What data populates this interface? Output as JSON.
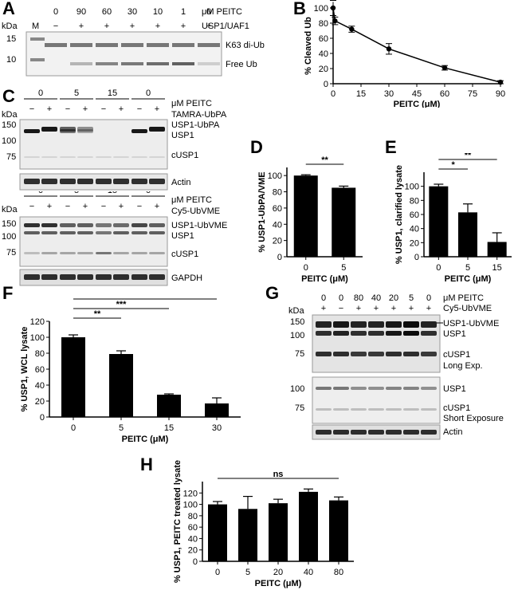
{
  "panels": {
    "A": {
      "letter": "A",
      "kda": "kDa",
      "marker_label": "M",
      "conc": [
        "0",
        "90",
        "60",
        "30",
        "10",
        "1",
        "0"
      ],
      "treat": [
        "−",
        "+",
        "+",
        "+",
        "+",
        "+",
        "+"
      ],
      "conc_unit": "μM PEITC",
      "enzyme": "USP1/UAF1",
      "mw": [
        "15",
        "10"
      ],
      "band_labels": [
        "K63 di-Ub",
        "Free Ub"
      ]
    },
    "C": {
      "letter": "C",
      "top": {
        "conc": [
          "0",
          "5",
          "15",
          "0"
        ],
        "conc_unit": "μM PEITC",
        "kda": "kDa",
        "treat": [
          "−",
          "+",
          "−",
          "+",
          "−",
          "+",
          "−",
          "+"
        ],
        "probe": "TAMRA-UbPA",
        "mw": [
          "150",
          "100",
          "75"
        ],
        "band_labels": [
          "USP1-UbPA",
          "USP1",
          "cUSP1"
        ],
        "loading": "Actin"
      },
      "bottom": {
        "kda": "kDa",
        "conc": [
          "0",
          "5",
          "15",
          "0"
        ],
        "conc_unit": "μM PEITC",
        "treat": [
          "−",
          "+",
          "−",
          "+",
          "−",
          "+",
          "−",
          "+"
        ],
        "probe": "Cy5-UbVME",
        "mw": [
          "150",
          "100",
          "75"
        ],
        "band_labels": [
          "USP1-UbVME",
          "USP1",
          "cUSP1"
        ],
        "loading": "GAPDH"
      }
    },
    "G": {
      "letter": "G",
      "kda": "kDa",
      "conc": [
        "0",
        "0",
        "80",
        "40",
        "20",
        "5",
        "0"
      ],
      "treat": [
        "+",
        "−",
        "+",
        "+",
        "+",
        "+",
        "+"
      ],
      "conc_unit": "μM PEITC",
      "probe": "Cy5-UbVME",
      "long": {
        "mw": [
          "150",
          "100",
          "75"
        ],
        "band_labels": [
          "USP1-UbVME",
          "USP1",
          "cUSP1",
          "Long Exp."
        ]
      },
      "short": {
        "mw": [
          "100",
          "75"
        ],
        "band_labels": [
          "USP1",
          "cUSP1",
          "Short Exposure"
        ]
      },
      "loading": "Actin"
    }
  },
  "chart_data": [
    {
      "panel": "B",
      "type": "line",
      "x": [
        0,
        1,
        10,
        30,
        60,
        90
      ],
      "y": [
        100,
        83,
        72,
        46,
        21,
        2
      ],
      "err": [
        10,
        5,
        4,
        7,
        3,
        2
      ],
      "xticks": [
        0,
        15,
        30,
        45,
        60,
        75,
        90
      ],
      "yticks": [
        0,
        20,
        40,
        60,
        80,
        100
      ],
      "xlim": [
        0,
        90
      ],
      "ylim": [
        0,
        100
      ],
      "xlabel": "PEITC (μM)",
      "ylabel": "% Cleaved Ub"
    },
    {
      "panel": "D",
      "type": "bar",
      "categories": [
        "0",
        "5"
      ],
      "values": [
        100,
        85
      ],
      "err": [
        1,
        2
      ],
      "yticks": [
        0,
        20,
        40,
        60,
        80,
        100
      ],
      "ylim": [
        0,
        110
      ],
      "xlabel": "PEITC (μM)",
      "ylabel": "% USP1-UbPA/VME",
      "significance": [
        {
          "from": 0,
          "to": 1,
          "label": "**"
        }
      ]
    },
    {
      "panel": "E",
      "type": "bar",
      "categories": [
        "0",
        "5",
        "15"
      ],
      "values": [
        100,
        63,
        21
      ],
      "err": [
        3,
        12,
        13
      ],
      "yticks": [
        0,
        20,
        40,
        60,
        80,
        100
      ],
      "ylim": [
        0,
        120
      ],
      "xlabel": "PEITC (μM)",
      "ylabel": "% USP1, clarified lysate",
      "significance": [
        {
          "from": 0,
          "to": 1,
          "label": "*"
        },
        {
          "from": 0,
          "to": 2,
          "label": "**"
        }
      ]
    },
    {
      "panel": "F",
      "type": "bar",
      "categories": [
        "0",
        "5",
        "15",
        "30"
      ],
      "values": [
        100,
        79,
        28,
        17
      ],
      "err": [
        3,
        4,
        1,
        7
      ],
      "yticks": [
        0,
        20,
        40,
        60,
        80,
        100,
        120
      ],
      "ylim": [
        0,
        120
      ],
      "xlabel": "PEITC (μM)",
      "ylabel": "% USP1, WCL lysate",
      "significance": [
        {
          "from": 0,
          "to": 1,
          "label": "**"
        },
        {
          "from": 0,
          "to": 2,
          "label": "***"
        },
        {
          "from": 0,
          "to": 3,
          "label": "***"
        }
      ]
    },
    {
      "panel": "H",
      "type": "bar",
      "categories": [
        "0",
        "5",
        "20",
        "40",
        "80"
      ],
      "values": [
        100,
        92,
        102,
        122,
        107
      ],
      "err": [
        5,
        22,
        7,
        5,
        6
      ],
      "yticks": [
        0,
        20,
        40,
        60,
        80,
        100,
        120
      ],
      "ylim": [
        0,
        140
      ],
      "xlabel": "PEITC (μM)",
      "ylabel": "% USP1, PEITC treated lysate",
      "significance": [
        {
          "from": 0,
          "to": 4,
          "label": "ns"
        }
      ]
    }
  ]
}
